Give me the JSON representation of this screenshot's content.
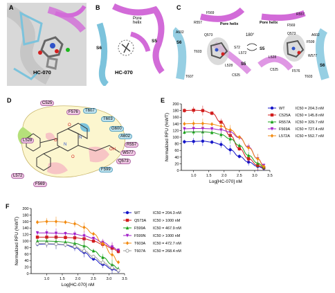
{
  "panels": {
    "a": {
      "letter": "A",
      "compound": "HC-070"
    },
    "b": {
      "letter": "B",
      "compound": "HC-070",
      "pore_helix": "Pore\nhelix",
      "s5": "S5",
      "s6": "S6"
    },
    "c": {
      "letter": "C",
      "rotation": "180°",
      "left_labels": [
        "F569",
        "R557",
        "Q573",
        "A602",
        "S6",
        "Pore helix",
        "S72",
        "T603",
        "L572",
        "L528",
        "C525",
        "T607",
        "S5"
      ],
      "right_labels": [
        "Pore helix",
        "F569",
        "R557",
        "Q573",
        "A602",
        "F599",
        "W577",
        "S5",
        "L528",
        "F576",
        "C525",
        "T603",
        "S6"
      ]
    },
    "d": {
      "letter": "D",
      "residues": [
        "C525",
        "F576",
        "T607",
        "T603",
        "G600",
        "A602",
        "R557",
        "W577",
        "Q573",
        "F599",
        "L528",
        "L572",
        "F569"
      ]
    },
    "e": {
      "letter": "E"
    },
    "f": {
      "letter": "F"
    }
  },
  "colors": {
    "membrane_blue": "#7cc3dc",
    "helix_magenta": "#d26bd8",
    "ligand_grey": "#888888",
    "pocket_yellow": "#fcf6cf",
    "hydro_pink": "#f2c9e6"
  },
  "chart_data": [
    {
      "type": "line",
      "panel": "E",
      "xlabel": "Log[HC-070] nM",
      "ylabel": "Normalized RFU (%WT)",
      "xlim": [
        0.6,
        3.5
      ],
      "ylim": [
        0,
        200
      ],
      "xticks": [
        "1.0",
        "1.5",
        "2.0",
        "2.5",
        "3.0",
        "3.5"
      ],
      "yticks": [
        "0",
        "20",
        "40",
        "60",
        "80",
        "100",
        "120",
        "140",
        "160",
        "180",
        "200"
      ],
      "x": [
        0.7,
        1.0,
        1.3,
        1.6,
        1.9,
        2.2,
        2.5,
        2.8,
        3.1,
        3.3
      ],
      "series": [
        {
          "name": "WT",
          "ic50_label": "IC50 = 204.3 nM",
          "color": "#1515c8",
          "marker": "circle",
          "values": [
            86,
            87,
            88,
            85,
            78,
            62,
            42,
            25,
            12,
            6
          ]
        },
        {
          "name": "C525A",
          "ic50_label": "IC50 = 145.8 nM",
          "color": "#d11b1b",
          "marker": "square",
          "values": [
            180,
            181,
            180,
            172,
            145,
            105,
            65,
            35,
            15,
            8
          ]
        },
        {
          "name": "R557A",
          "ic50_label": "IC50 = 329.7 nM",
          "color": "#1aa11a",
          "marker": "triangle",
          "values": [
            115,
            116,
            116,
            114,
            108,
            95,
            75,
            45,
            22,
            10
          ]
        },
        {
          "name": "F569A",
          "ic50_label": "IC50 = 727.4 nM",
          "color": "#a020c8",
          "marker": "triangle-down",
          "values": [
            125,
            126,
            126,
            125,
            122,
            115,
            98,
            70,
            35,
            15
          ]
        },
        {
          "name": "L572A",
          "ic50_label": "IC50 = 552.7 nM",
          "color": "#f28a10",
          "marker": "diamond",
          "values": [
            140,
            141,
            141,
            139,
            133,
            122,
            100,
            68,
            35,
            12
          ]
        }
      ]
    },
    {
      "type": "line",
      "panel": "F",
      "xlabel": "Log[HC-070] nM",
      "ylabel": "Normalized RFU (%WT)",
      "xlim": [
        0.5,
        3.5
      ],
      "ylim": [
        0,
        200
      ],
      "xticks": [
        "1.0",
        "1.5",
        "2.0",
        "2.5",
        "3.0",
        "3.5"
      ],
      "yticks": [
        "0",
        "20",
        "40",
        "60",
        "80",
        "100",
        "120",
        "140",
        "160",
        "180",
        "200"
      ],
      "x": [
        0.7,
        1.0,
        1.3,
        1.6,
        1.9,
        2.2,
        2.5,
        2.8,
        3.1,
        3.3
      ],
      "series": [
        {
          "name": "WT",
          "ic50_label": "IC50 = 204.3 nM",
          "color": "#1515c8",
          "marker": "circle",
          "values": [
            90,
            91,
            90,
            88,
            80,
            65,
            45,
            28,
            14,
            8
          ]
        },
        {
          "name": "Q573A",
          "ic50_label": "IC50 > 1000 nM",
          "color": "#d11b1b",
          "marker": "square",
          "values": [
            112,
            112,
            112,
            111,
            110,
            107,
            100,
            90,
            78,
            68
          ]
        },
        {
          "name": "F599A",
          "ic50_label": "IC50 = 467.9 nM",
          "color": "#1aa11a",
          "marker": "triangle",
          "values": [
            100,
            100,
            99,
            97,
            93,
            85,
            70,
            50,
            28,
            15
          ]
        },
        {
          "name": "F599N",
          "ic50_label": "IC50 > 1000 nM",
          "color": "#a020c8",
          "marker": "triangle-down",
          "values": [
            125,
            125,
            124,
            123,
            121,
            116,
            108,
            96,
            82,
            72
          ]
        },
        {
          "name": "T603A",
          "ic50_label": "IC50 = 472.7 nM",
          "color": "#f28a10",
          "marker": "diamond",
          "values": [
            158,
            160,
            160,
            158,
            153,
            142,
            122,
            92,
            58,
            35
          ]
        },
        {
          "name": "T607A",
          "ic50_label": "IC50 = 268.4 nM",
          "color": "#999999",
          "marker": "circle-open",
          "values": [
            92,
            92,
            91,
            89,
            83,
            70,
            52,
            34,
            18,
            10
          ]
        }
      ]
    }
  ]
}
